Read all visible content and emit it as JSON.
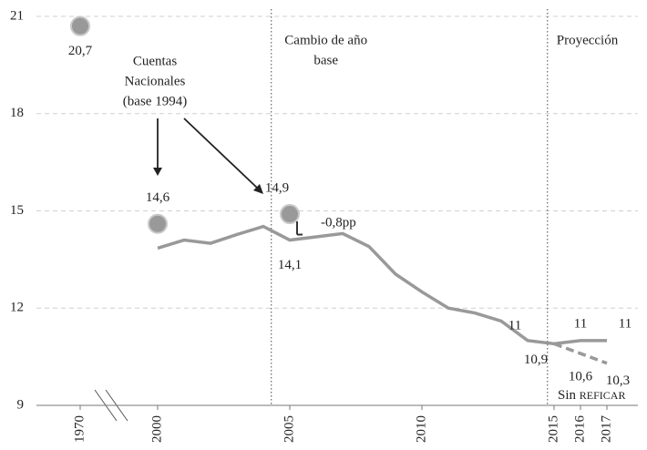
{
  "chart_data": {
    "type": "line",
    "ylim": [
      9,
      21
    ],
    "yticks": [
      9,
      12,
      15,
      18,
      21
    ],
    "xticks": [
      1970,
      2000,
      2005,
      2010,
      2015,
      2016,
      2017
    ],
    "x_break": [
      1970,
      2000
    ],
    "grid": true,
    "series": [
      {
        "color": "#999999",
        "style": "solid",
        "x": [
          2000,
          2001,
          2002,
          2003,
          2004,
          2005,
          2006,
          2007,
          2008,
          2009,
          2010,
          2011,
          2012,
          2013,
          2014,
          2015,
          2016,
          2017
        ],
        "values": [
          13.85,
          14.1,
          14.0,
          14.27,
          14.52,
          14.1,
          14.2,
          14.3,
          13.9,
          13.05,
          12.5,
          12.0,
          11.85,
          11.6,
          11.0,
          10.9,
          11.0,
          11.0
        ],
        "value_labels": [
          null,
          null,
          null,
          null,
          null,
          "14,1",
          null,
          null,
          null,
          null,
          null,
          null,
          null,
          null,
          "11",
          "10,9",
          "11",
          "11"
        ]
      },
      {
        "name": "Sin REFICAR",
        "color": "#999999",
        "style": "dashed",
        "x": [
          2015,
          2016,
          2017
        ],
        "values": [
          10.9,
          10.6,
          10.3
        ],
        "value_labels": [
          null,
          "10,6",
          "10,3"
        ]
      },
      {
        "color": "#999999",
        "style": "points",
        "x": [
          1970,
          2000,
          2005
        ],
        "values": [
          20.7,
          14.6,
          14.9
        ],
        "value_labels": [
          "20,7",
          "14,6",
          "14,9"
        ]
      }
    ],
    "vlines": [
      {
        "x": 2004.3,
        "label": [
          "Cambio de año",
          "base"
        ]
      },
      {
        "x": 2014.75,
        "label": [
          "Proyección"
        ]
      }
    ],
    "annotations": [
      {
        "text": [
          "Cuentas",
          "Nacionales",
          "(base 1994)"
        ]
      },
      {
        "text": "-0,8pp"
      }
    ]
  }
}
